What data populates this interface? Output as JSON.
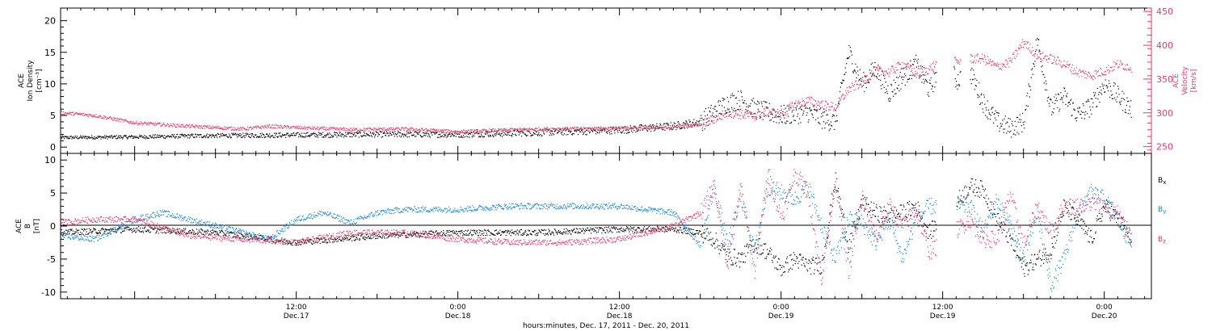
{
  "colors": {
    "black": "#000000",
    "pink": "#e8386a",
    "blue": "#1e86d6"
  },
  "chart_data": [
    {
      "type": "scatter",
      "panel": "top",
      "left_axis_label": [
        "ACE",
        "Ion Density",
        "[cm⁻³]"
      ],
      "right_axis_label": [
        "ACE",
        "Velocity",
        "[km/s]"
      ],
      "ylim_left": [
        -1,
        22
      ],
      "ylim_right": [
        240,
        455
      ],
      "yticks_left": [
        0,
        5,
        10,
        15,
        20
      ],
      "yticks_right": [
        250,
        300,
        350,
        400,
        450
      ],
      "x_unit": "hours since Dec 17 00:00",
      "xlim": [
        -5.5,
        75.5
      ],
      "series": [
        {
          "name": "Ion Density",
          "color": "black",
          "axis": "left",
          "x": [
            -5.5,
            0,
            6,
            12,
            18,
            24,
            30,
            36,
            40,
            42,
            44,
            45,
            46,
            48,
            50,
            51,
            52,
            53,
            54,
            55,
            56,
            57,
            58,
            59,
            60,
            61,
            62,
            63,
            64,
            65,
            66,
            67,
            68,
            69,
            70,
            71,
            72,
            73,
            74
          ],
          "y": [
            1.5,
            1.6,
            1.8,
            1.9,
            2.0,
            2.0,
            2.3,
            2.7,
            3.3,
            4.0,
            7.0,
            7.5,
            6.0,
            5.0,
            5.5,
            4.5,
            4.0,
            15.0,
            10.0,
            12.5,
            8.5,
            11.0,
            13.0,
            9.0,
            14.0,
            10.5,
            12.0,
            7.0,
            4.0,
            3.0,
            4.0,
            17.0,
            6.0,
            8.0,
            5.0,
            6.5,
            10.0,
            8.0,
            6.0
          ]
        },
        {
          "name": "Velocity",
          "color": "pink",
          "axis": "right",
          "x": [
            -5.5,
            -3,
            0,
            4,
            8,
            10,
            12,
            16,
            20,
            24,
            30,
            36,
            40,
            42,
            44,
            46,
            47,
            48,
            49,
            50,
            51,
            52,
            53,
            54,
            55,
            56,
            57,
            58,
            59,
            60,
            61,
            62,
            63,
            64,
            65,
            66,
            67,
            68,
            69,
            70,
            71,
            72,
            73,
            74
          ],
          "y": [
            300,
            296,
            285,
            280,
            276,
            280,
            278,
            275,
            276,
            272,
            276,
            277,
            280,
            282,
            300,
            295,
            302,
            298,
            312,
            318,
            312,
            308,
            335,
            345,
            362,
            360,
            372,
            358,
            365,
            380,
            375,
            380,
            380,
            368,
            375,
            405,
            385,
            380,
            372,
            360,
            355,
            362,
            372,
            367
          ]
        }
      ],
      "gaps": [
        [
          59.5,
          60.8
        ],
        [
          61.3,
          62.0
        ]
      ]
    },
    {
      "type": "scatter",
      "panel": "bottom",
      "left_axis_label": [
        "ACE",
        "B",
        "[nT]"
      ],
      "ylim": [
        -11,
        11
      ],
      "yticks": [
        -10,
        -5,
        0,
        5,
        10
      ],
      "zero_line": true,
      "x_unit": "hours since Dec 17 00:00",
      "xlim": [
        -5.5,
        75.5
      ],
      "legend": [
        "Bx",
        "By",
        "Bz"
      ],
      "series": [
        {
          "name": "Bx",
          "color": "black",
          "x": [
            -5.5,
            0,
            6,
            12,
            18,
            24,
            30,
            36,
            40,
            42,
            43,
            44,
            45,
            46,
            47,
            48,
            49,
            50,
            51,
            52,
            53,
            54,
            55,
            56,
            57,
            58,
            59,
            62,
            63,
            64,
            65,
            66,
            67,
            68,
            69,
            70,
            71,
            72,
            73,
            74
          ],
          "y": [
            -1.0,
            -0.5,
            -1.0,
            -2.5,
            -1.5,
            -1.0,
            -1.0,
            -0.5,
            -0.5,
            -1.0,
            -2.0,
            -4.5,
            -5.0,
            -2.5,
            -4.0,
            -6.5,
            -5.0,
            -6.0,
            -6.0,
            7.0,
            -3.0,
            3.5,
            2.0,
            1.5,
            2.0,
            3.0,
            -1.0,
            6.0,
            5.5,
            1.0,
            -2.0,
            -6.5,
            -5.0,
            -4.0,
            3.0,
            1.0,
            -2.0,
            3.0,
            1.0,
            -2.0
          ]
        },
        {
          "name": "By",
          "color": "blue",
          "x": [
            -5.5,
            -3,
            0,
            2,
            4,
            6,
            8,
            10,
            12,
            14,
            16,
            18,
            20,
            24,
            28,
            32,
            36,
            40,
            42,
            43,
            44,
            45,
            46,
            47,
            48,
            49,
            50,
            51,
            52,
            53,
            54,
            55,
            56,
            57,
            58,
            59,
            62,
            63,
            64,
            65,
            66,
            67,
            68,
            69,
            70,
            71,
            72,
            73,
            74
          ],
          "y": [
            -1.5,
            -2.0,
            1.0,
            2.0,
            1.0,
            0.0,
            -1.0,
            -2.0,
            1.0,
            2.0,
            0.5,
            2.0,
            2.5,
            2.5,
            3.0,
            3.0,
            3.0,
            2.0,
            -3.0,
            6.0,
            -3.0,
            4.5,
            -4.0,
            6.0,
            5.0,
            4.0,
            6.0,
            0.0,
            -5.0,
            1.0,
            0.5,
            -2.5,
            1.0,
            -5.0,
            1.0,
            3.0,
            3.0,
            -1.0,
            4.0,
            0.0,
            -5.0,
            2.0,
            -9.0,
            -5.0,
            2.0,
            5.0,
            4.0,
            1.0,
            -3.0
          ]
        },
        {
          "name": "Bz",
          "color": "pink",
          "x": [
            -5.5,
            -3,
            0,
            4,
            8,
            12,
            16,
            20,
            24,
            28,
            32,
            36,
            40,
            42,
            43,
            44,
            45,
            46,
            47,
            48,
            49,
            50,
            51,
            52,
            53,
            54,
            55,
            56,
            57,
            58,
            59,
            62,
            63,
            64,
            65,
            66,
            67,
            68,
            69,
            70,
            71,
            72,
            73,
            74
          ],
          "y": [
            0.5,
            1.0,
            1.0,
            -1.5,
            -2.0,
            -2.5,
            -1.0,
            -1.0,
            -2.0,
            -2.5,
            -2.5,
            -2.0,
            0.0,
            2.0,
            6.0,
            -6.0,
            6.0,
            -7.0,
            8.0,
            1.0,
            8.0,
            5.0,
            -8.0,
            7.0,
            -7.0,
            4.5,
            -2.0,
            3.0,
            0.0,
            2.5,
            -4.0,
            1.0,
            -2.0,
            -2.0,
            5.0,
            -3.0,
            3.0,
            -1.0,
            3.0,
            3.0,
            3.5,
            3.0,
            2.0,
            -2.0
          ]
        }
      ],
      "gaps": [
        [
          59.5,
          61.0
        ]
      ]
    }
  ],
  "x_axis": {
    "major_ticks": [
      {
        "hour": 12,
        "time": "12:00",
        "date": "Dec.17"
      },
      {
        "hour": 24,
        "time": "0:00",
        "date": "Dec.18"
      },
      {
        "hour": 36,
        "time": "12:00",
        "date": "Dec.18"
      },
      {
        "hour": 48,
        "time": "0:00",
        "date": "Dec.19"
      },
      {
        "hour": 60,
        "time": "12:00",
        "date": "Dec.19"
      },
      {
        "hour": 72,
        "time": "0:00",
        "date": "Dec.20"
      }
    ],
    "title": "hours:minutes, Dec. 17, 2011 - Dec. 20, 2011"
  }
}
